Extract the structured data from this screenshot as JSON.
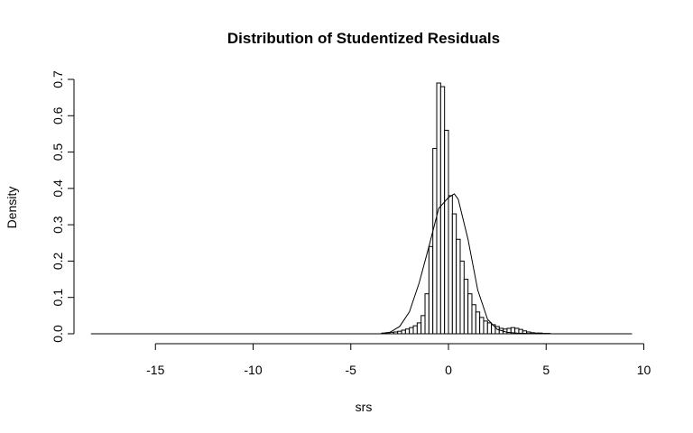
{
  "chart_data": {
    "type": "bar",
    "title": "Distribution of Studentized Residuals",
    "xlabel": "srs",
    "ylabel": "Density",
    "xlim": [
      -18.5,
      10
    ],
    "ylim": [
      0,
      0.7
    ],
    "x_ticks": [
      "-15",
      "-10",
      "-5",
      "0",
      "5",
      "10"
    ],
    "y_ticks": [
      "0.0",
      "0.1",
      "0.2",
      "0.3",
      "0.4",
      "0.5",
      "0.6",
      "0.7"
    ],
    "bin_width": 0.2,
    "bins": {
      "x": [
        -3.4,
        -3.2,
        -3.0,
        -2.8,
        -2.6,
        -2.4,
        -2.2,
        -2.0,
        -1.8,
        -1.6,
        -1.4,
        -1.2,
        -1.0,
        -0.8,
        -0.6,
        -0.4,
        -0.2,
        0.0,
        0.2,
        0.4,
        0.6,
        0.8,
        1.0,
        1.2,
        1.4,
        1.6,
        1.8,
        2.0,
        2.2,
        2.4,
        2.6,
        2.8,
        3.0,
        3.2,
        3.4,
        3.6,
        3.8,
        4.0,
        4.2,
        4.4,
        4.6,
        4.8,
        5.0
      ],
      "density": [
        0.002,
        0.003,
        0.004,
        0.005,
        0.007,
        0.01,
        0.013,
        0.017,
        0.022,
        0.03,
        0.05,
        0.11,
        0.24,
        0.51,
        0.69,
        0.68,
        0.56,
        0.38,
        0.33,
        0.26,
        0.2,
        0.15,
        0.11,
        0.08,
        0.06,
        0.045,
        0.035,
        0.03,
        0.025,
        0.02,
        0.015,
        0.013,
        0.015,
        0.017,
        0.015,
        0.012,
        0.008,
        0.005,
        0.003,
        0.002,
        0.002,
        0.001,
        0.001
      ]
    },
    "baseline_range": [
      -18.3,
      9.4
    ],
    "density_curve": {
      "x": [
        -3.5,
        -3.0,
        -2.5,
        -2.0,
        -1.5,
        -1.0,
        -0.5,
        0.0,
        0.3,
        0.5,
        1.0,
        1.5,
        2.0,
        2.5,
        3.0,
        3.5,
        4.0,
        4.5,
        5.0
      ],
      "y": [
        0.0,
        0.004,
        0.02,
        0.06,
        0.14,
        0.24,
        0.345,
        0.375,
        0.385,
        0.37,
        0.26,
        0.12,
        0.04,
        0.012,
        0.004,
        0.002,
        0.001,
        0.0005,
        0.0
      ]
    }
  }
}
